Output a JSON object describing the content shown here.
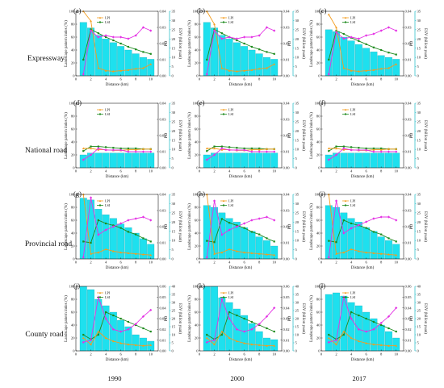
{
  "figure": {
    "rows": [
      {
        "label": "Expressway",
        "panels": [
          "(a)",
          "(b)",
          "(c)"
        ]
      },
      {
        "label": "National road",
        "panels": [
          "(d)",
          "(e)",
          "(f)"
        ]
      },
      {
        "label": "Provincial road",
        "panels": [
          "(g)",
          "(h)",
          "(i)"
        ]
      },
      {
        "label": "County road",
        "panels": [
          "(j)",
          "(k)",
          "(l)"
        ]
      }
    ],
    "years": [
      "1990",
      "2000",
      "2017"
    ]
  },
  "axis_labels": {
    "x": "Distance (km)",
    "y_left": "Landscape pattern index (%)",
    "y_pd": "PD",
    "y_esv": "ESV (billion yuan)"
  },
  "legend": {
    "lpi": "LPI",
    "lsi": "LSI"
  },
  "colors": {
    "bar": "#1ee0ee",
    "bar_edge": "#18a9b4",
    "lpi": "#f39c1e",
    "lsi": "#1d8a1d",
    "pd": "#e432e4",
    "esv_axis": "#17b7c4"
  },
  "chart_data": [
    {
      "panel": "(a)",
      "type": "bar",
      "x": [
        1,
        2,
        3,
        4,
        5,
        6,
        7,
        8,
        9,
        10
      ],
      "esv": [
        29,
        26,
        22,
        20,
        18,
        16,
        14,
        12,
        10,
        9
      ],
      "lpi": [
        100,
        85,
        12,
        8,
        7,
        8,
        9,
        11,
        12,
        18
      ],
      "lsi": [
        25,
        72,
        66,
        60,
        55,
        50,
        45,
        41,
        37,
        34
      ],
      "pd": [
        0.001,
        0.028,
        0.024,
        0.025,
        0.024,
        0.024,
        0.023,
        0.025,
        0.03,
        0.028
      ],
      "ylim": [
        0,
        100
      ],
      "pd_lim": [
        0,
        0.04
      ],
      "esv_lim": [
        0,
        35
      ]
    },
    {
      "panel": "(b)",
      "type": "bar",
      "x": [
        1,
        2,
        3,
        4,
        5,
        6,
        7,
        8,
        9,
        10
      ],
      "esv": [
        29,
        26,
        22,
        20,
        18,
        16,
        14,
        12,
        10,
        9
      ],
      "lpi": [
        100,
        80,
        12,
        8,
        7,
        8,
        9,
        11,
        12,
        18
      ],
      "lsi": [
        25,
        72,
        66,
        60,
        55,
        50,
        45,
        41,
        37,
        34
      ],
      "pd": [
        0.001,
        0.028,
        0.023,
        0.024,
        0.023,
        0.024,
        0.024,
        0.025,
        0.03,
        0.028
      ],
      "ylim": [
        0,
        100
      ],
      "pd_lim": [
        0,
        0.04
      ],
      "esv_lim": [
        0,
        35
      ]
    },
    {
      "panel": "(c)",
      "type": "bar",
      "x": [
        1,
        2,
        3,
        4,
        5,
        6,
        7,
        8,
        9,
        10
      ],
      "esv": [
        25,
        24,
        21,
        19,
        17,
        15,
        13,
        11,
        10,
        9
      ],
      "lpi": [
        95,
        75,
        12,
        8,
        7,
        8,
        9,
        11,
        12,
        18
      ],
      "lsi": [
        25,
        70,
        65,
        59,
        54,
        49,
        44,
        40,
        36,
        33
      ],
      "pd": [
        0.001,
        0.027,
        0.023,
        0.024,
        0.023,
        0.025,
        0.026,
        0.028,
        0.03,
        0.028
      ],
      "ylim": [
        0,
        100
      ],
      "pd_lim": [
        0,
        0.04
      ],
      "esv_lim": [
        0,
        35
      ]
    },
    {
      "panel": "(d)",
      "type": "bar",
      "x": [
        1,
        2,
        3,
        4,
        5,
        6,
        7,
        8,
        9,
        10
      ],
      "esv": [
        7,
        8,
        8,
        8,
        8,
        8,
        8,
        8,
        8,
        8
      ],
      "lpi": [
        30,
        30,
        28,
        28,
        27,
        27,
        28,
        28,
        29,
        29
      ],
      "lsi": [
        26,
        33,
        33,
        32,
        31,
        30,
        30,
        30,
        29,
        29
      ],
      "pd": [
        0.005,
        0.008,
        0.012,
        0.011,
        0.011,
        0.011,
        0.01,
        0.01,
        0.01,
        0.01
      ],
      "ylim": [
        0,
        100
      ],
      "pd_lim": [
        0,
        0.04
      ],
      "esv_lim": [
        0,
        35
      ]
    },
    {
      "panel": "(e)",
      "type": "bar",
      "x": [
        1,
        2,
        3,
        4,
        5,
        6,
        7,
        8,
        9,
        10
      ],
      "esv": [
        7,
        8,
        8,
        8,
        8,
        8,
        8,
        8,
        8,
        8
      ],
      "lpi": [
        30,
        30,
        28,
        28,
        27,
        27,
        28,
        28,
        29,
        29
      ],
      "lsi": [
        26,
        33,
        33,
        32,
        31,
        30,
        30,
        30,
        29,
        29
      ],
      "pd": [
        0.005,
        0.008,
        0.012,
        0.011,
        0.011,
        0.011,
        0.01,
        0.01,
        0.01,
        0.01
      ],
      "ylim": [
        0,
        100
      ],
      "pd_lim": [
        0,
        0.04
      ],
      "esv_lim": [
        0,
        35
      ]
    },
    {
      "panel": "(f)",
      "type": "bar",
      "x": [
        1,
        2,
        3,
        4,
        5,
        6,
        7,
        8,
        9,
        10
      ],
      "esv": [
        7,
        8,
        8,
        8,
        8,
        8,
        8,
        8,
        8,
        8
      ],
      "lpi": [
        30,
        30,
        28,
        28,
        27,
        27,
        28,
        28,
        29,
        29
      ],
      "lsi": [
        26,
        33,
        33,
        32,
        31,
        30,
        30,
        30,
        29,
        29
      ],
      "pd": [
        0.005,
        0.008,
        0.012,
        0.011,
        0.011,
        0.011,
        0.01,
        0.01,
        0.01,
        0.01
      ],
      "ylim": [
        0,
        100
      ],
      "pd_lim": [
        0,
        0.04
      ],
      "esv_lim": [
        0,
        35
      ]
    },
    {
      "panel": "(g)",
      "type": "bar",
      "x": [
        1,
        2,
        3,
        4,
        5,
        6,
        7,
        8,
        9,
        10
      ],
      "esv": [
        33,
        32,
        27,
        24,
        22,
        19,
        17,
        14,
        11,
        8
      ],
      "lpi": [
        100,
        8,
        10,
        15,
        12,
        10,
        9,
        8,
        7,
        6
      ],
      "lsi": [
        27,
        25,
        60,
        55,
        52,
        48,
        42,
        38,
        32,
        27
      ],
      "pd": [
        0.001,
        0.038,
        0.015,
        0.018,
        0.02,
        0.022,
        0.024,
        0.025,
        0.026,
        0.024
      ],
      "ylim": [
        0,
        100
      ],
      "pd_lim": [
        0,
        0.04
      ],
      "esv_lim": [
        0,
        35
      ]
    },
    {
      "panel": "(h)",
      "type": "bar",
      "x": [
        1,
        2,
        3,
        4,
        5,
        6,
        7,
        8,
        9,
        10
      ],
      "esv": [
        29,
        28,
        25,
        22,
        20,
        17,
        15,
        12,
        10,
        7
      ],
      "lpi": [
        100,
        8,
        10,
        15,
        12,
        10,
        9,
        8,
        7,
        6
      ],
      "lsi": [
        28,
        26,
        62,
        56,
        52,
        48,
        42,
        38,
        32,
        27
      ],
      "pd": [
        0.001,
        0.036,
        0.015,
        0.018,
        0.02,
        0.022,
        0.024,
        0.025,
        0.026,
        0.024
      ],
      "ylim": [
        0,
        100
      ],
      "pd_lim": [
        0,
        0.04
      ],
      "esv_lim": [
        0,
        35
      ]
    },
    {
      "panel": "(i)",
      "type": "bar",
      "x": [
        1,
        2,
        3,
        4,
        5,
        6,
        7,
        8,
        9,
        10
      ],
      "esv": [
        29,
        28,
        25,
        22,
        20,
        17,
        15,
        12,
        10,
        8
      ],
      "lpi": [
        100,
        8,
        10,
        15,
        12,
        10,
        9,
        8,
        7,
        6
      ],
      "lsi": [
        28,
        26,
        60,
        55,
        52,
        48,
        42,
        38,
        32,
        27
      ],
      "pd": [
        0.001,
        0.036,
        0.016,
        0.019,
        0.021,
        0.023,
        0.025,
        0.026,
        0.026,
        0.024
      ],
      "ylim": [
        0,
        100
      ],
      "pd_lim": [
        0,
        0.04
      ],
      "esv_lim": [
        0,
        35
      ]
    },
    {
      "panel": "(j)",
      "type": "bar",
      "x": [
        1,
        2,
        3,
        4,
        5,
        6,
        7,
        8,
        9,
        10
      ],
      "esv": [
        40,
        38,
        32,
        28,
        24,
        19,
        15,
        10,
        8,
        6
      ],
      "lpi": [
        20,
        10,
        30,
        20,
        15,
        12,
        10,
        9,
        8,
        9
      ],
      "lsi": [
        25,
        18,
        25,
        60,
        55,
        50,
        45,
        40,
        35,
        30
      ],
      "pd": [
        0.008,
        0.01,
        0.05,
        0.03,
        0.02,
        0.018,
        0.02,
        0.025,
        0.032,
        0.038
      ],
      "ylim": [
        0,
        100
      ],
      "pd_lim": [
        0,
        0.06
      ],
      "esv_lim": [
        0,
        40
      ]
    },
    {
      "panel": "(k)",
      "type": "bar",
      "x": [
        1,
        2,
        3,
        4,
        5,
        6,
        7,
        8,
        9,
        10
      ],
      "esv": [
        40,
        40,
        33,
        30,
        26,
        22,
        17,
        12,
        8,
        7
      ],
      "lpi": [
        20,
        10,
        30,
        20,
        15,
        12,
        10,
        9,
        8,
        8
      ],
      "lsi": [
        25,
        18,
        25,
        60,
        55,
        50,
        45,
        40,
        35,
        30
      ],
      "pd": [
        0.008,
        0.01,
        0.048,
        0.03,
        0.02,
        0.018,
        0.02,
        0.025,
        0.032,
        0.04
      ],
      "ylim": [
        0,
        100
      ],
      "pd_lim": [
        0,
        0.06
      ],
      "esv_lim": [
        0,
        40
      ]
    },
    {
      "panel": "(l)",
      "type": "bar",
      "x": [
        1,
        2,
        3,
        4,
        5,
        6,
        7,
        8,
        9,
        10
      ],
      "esv": [
        35,
        36,
        34,
        30,
        28,
        24,
        20,
        16,
        12,
        8
      ],
      "lpi": [
        20,
        10,
        30,
        20,
        15,
        12,
        10,
        9,
        8,
        8
      ],
      "lsi": [
        25,
        18,
        25,
        60,
        55,
        50,
        45,
        40,
        35,
        30
      ],
      "pd": [
        0.008,
        0.01,
        0.05,
        0.03,
        0.02,
        0.018,
        0.02,
        0.026,
        0.032,
        0.04
      ],
      "ylim": [
        0,
        100
      ],
      "pd_lim": [
        0,
        0.06
      ],
      "esv_lim": [
        0,
        40
      ]
    }
  ]
}
